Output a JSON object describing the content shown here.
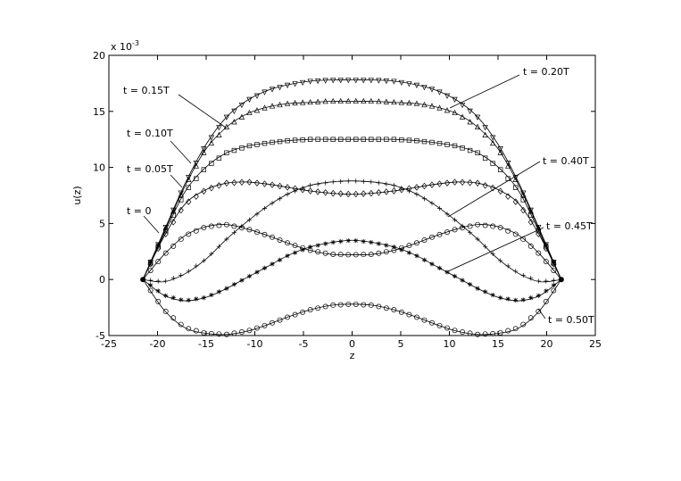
{
  "chart_data": {
    "type": "line",
    "title": "",
    "xlabel": "z",
    "ylabel": "u(z)",
    "y_multiplier_label": "x 10",
    "y_multiplier_exponent": "-3",
    "xlim": [
      -25,
      25
    ],
    "ylim": [
      -5,
      20
    ],
    "xticks": [
      -25,
      -20,
      -15,
      -10,
      -5,
      0,
      5,
      10,
      15,
      20,
      25
    ],
    "yticks": [
      -5,
      0,
      5,
      10,
      15,
      20
    ],
    "grid": false,
    "legend": "none",
    "line_color": "#000000",
    "z_half_width": 21.5,
    "series": [
      {
        "name": "t = 0",
        "marker": "circle",
        "x": [
          -21.5,
          -19.35,
          -17.2,
          -15.05,
          -12.9,
          -10.75,
          -8.6,
          -6.45,
          -4.3,
          -2.15,
          0,
          2.15,
          4.3,
          6.45,
          8.6,
          10.75,
          12.9,
          15.05,
          17.2,
          19.35,
          21.5
        ],
        "y": [
          0,
          2.2,
          3.9,
          4.7,
          4.9,
          4.5,
          3.9,
          3.2,
          2.6,
          2.25,
          2.2,
          2.25,
          2.6,
          3.2,
          3.9,
          4.5,
          4.9,
          4.7,
          3.9,
          2.2,
          0
        ]
      },
      {
        "name": "t = 0.05T",
        "marker": "diamond",
        "x": [
          -21.5,
          -19.35,
          -17.2,
          -15.05,
          -12.9,
          -10.75,
          -8.6,
          -6.45,
          -4.3,
          -2.15,
          0,
          2.15,
          4.3,
          6.45,
          8.6,
          10.75,
          12.9,
          15.05,
          17.2,
          19.35,
          21.5
        ],
        "y": [
          0,
          3.8,
          6.7,
          8.0,
          8.6,
          8.7,
          8.5,
          8.2,
          7.9,
          7.7,
          7.6,
          7.7,
          7.9,
          8.2,
          8.5,
          8.7,
          8.6,
          8.0,
          6.7,
          3.8,
          0
        ]
      },
      {
        "name": "t = 0.10T",
        "marker": "square",
        "x": [
          -21.5,
          -19.35,
          -17.2,
          -15.05,
          -12.9,
          -10.75,
          -8.6,
          -6.45,
          -4.3,
          -2.15,
          0,
          2.15,
          4.3,
          6.45,
          8.6,
          10.75,
          12.9,
          15.05,
          17.2,
          19.35,
          21.5
        ],
        "y": [
          0,
          4.0,
          7.8,
          10.0,
          11.3,
          11.9,
          12.2,
          12.4,
          12.5,
          12.5,
          12.5,
          12.5,
          12.5,
          12.4,
          12.2,
          11.9,
          11.3,
          10.0,
          7.8,
          4.0,
          0
        ]
      },
      {
        "name": "t = 0.15T",
        "marker": "triangle-up",
        "x": [
          -21.5,
          -19.35,
          -17.2,
          -15.05,
          -12.9,
          -10.75,
          -8.6,
          -6.45,
          -4.3,
          -2.15,
          0,
          2.15,
          4.3,
          6.45,
          8.6,
          10.75,
          12.9,
          15.05,
          17.2,
          19.35,
          21.5
        ],
        "y": [
          0,
          4.2,
          8.3,
          11.6,
          13.6,
          14.8,
          15.4,
          15.7,
          15.8,
          15.9,
          15.9,
          15.9,
          15.8,
          15.7,
          15.4,
          14.8,
          13.6,
          11.6,
          8.3,
          4.2,
          0
        ]
      },
      {
        "name": "t = 0.20T",
        "marker": "triangle-down",
        "x": [
          -21.5,
          -19.35,
          -17.2,
          -15.05,
          -12.9,
          -10.75,
          -8.6,
          -6.45,
          -4.3,
          -2.15,
          0,
          2.15,
          4.3,
          6.45,
          8.6,
          10.75,
          12.9,
          15.05,
          17.2,
          19.35,
          21.5
        ],
        "y": [
          0,
          4.3,
          8.5,
          12.0,
          14.5,
          16.0,
          16.9,
          17.4,
          17.7,
          17.8,
          17.8,
          17.8,
          17.7,
          17.4,
          16.9,
          16.0,
          14.5,
          12.0,
          8.5,
          4.3,
          0
        ]
      },
      {
        "name": "t = 0.40T",
        "marker": "plus",
        "x": [
          -21.5,
          -19.35,
          -17.2,
          -15.05,
          -12.9,
          -10.75,
          -8.6,
          -6.45,
          -4.3,
          -2.15,
          0,
          2.15,
          4.3,
          6.45,
          8.6,
          10.75,
          12.9,
          15.05,
          17.2,
          19.35,
          21.5
        ],
        "y": [
          0,
          -0.2,
          0.5,
          1.8,
          3.6,
          5.2,
          6.6,
          7.7,
          8.4,
          8.7,
          8.8,
          8.7,
          8.4,
          7.7,
          6.6,
          5.2,
          3.6,
          1.8,
          0.5,
          -0.2,
          0
        ]
      },
      {
        "name": "t = 0.45T",
        "marker": "star",
        "x": [
          -21.5,
          -19.35,
          -17.2,
          -15.05,
          -12.9,
          -10.75,
          -8.6,
          -6.45,
          -4.3,
          -2.15,
          0,
          2.15,
          4.3,
          6.45,
          8.6,
          10.75,
          12.9,
          15.05,
          17.2,
          19.35,
          21.5
        ],
        "y": [
          0,
          -1.4,
          -1.9,
          -1.6,
          -0.8,
          0.2,
          1.2,
          2.2,
          2.9,
          3.3,
          3.5,
          3.3,
          2.9,
          2.2,
          1.2,
          0.2,
          -0.8,
          -1.6,
          -1.9,
          -1.4,
          0
        ]
      },
      {
        "name": "t = 0.50T",
        "marker": "circle",
        "x": [
          -21.5,
          -19.35,
          -17.2,
          -15.05,
          -12.9,
          -10.75,
          -8.6,
          -6.45,
          -4.3,
          -2.15,
          0,
          2.15,
          4.3,
          6.45,
          8.6,
          10.75,
          12.9,
          15.05,
          17.2,
          19.35,
          21.5
        ],
        "y": [
          0,
          -2.7,
          -4.3,
          -4.8,
          -4.9,
          -4.6,
          -4.0,
          -3.3,
          -2.7,
          -2.3,
          -2.2,
          -2.3,
          -2.7,
          -3.3,
          -4.0,
          -4.6,
          -4.9,
          -4.8,
          -4.3,
          -2.7,
          0
        ]
      }
    ],
    "annotations": [
      {
        "text": "t = 0",
        "target_series": 0
      },
      {
        "text": "t = 0.05T",
        "target_series": 1
      },
      {
        "text": "t = 0.10T",
        "target_series": 2
      },
      {
        "text": "t = 0.15T",
        "target_series": 3
      },
      {
        "text": "t = 0.20T",
        "target_series": 4
      },
      {
        "text": "t = 0.40T",
        "target_series": 5
      },
      {
        "text": "t = 0.45T",
        "target_series": 6
      },
      {
        "text": "t = 0.50T",
        "target_series": 7
      }
    ]
  }
}
